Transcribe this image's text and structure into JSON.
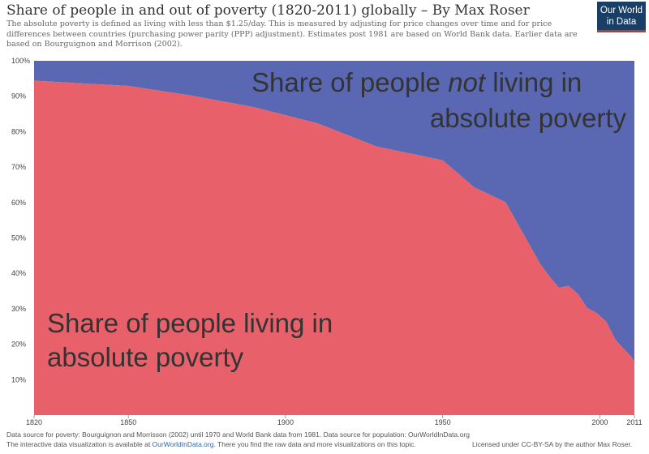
{
  "header": {
    "title": "Share of people in and out of poverty (1820-2011) globally – By Max Roser",
    "subtitle": "The absolute poverty is defined as living with less than $1.25/day. This is measured by adjusting for price changes over time and for price differences between countries (purchasing power parity (PPP) adjustment). Estimates post 1981 are based on World Bank data. Earlier data are based on Bourguignon and Morrison (2002)."
  },
  "logo": {
    "line1": "Our World",
    "line2": "in Data"
  },
  "annotations": {
    "not_poor_line1": "Share of people ",
    "not_poor_not": "not",
    "not_poor_line1_end": " living in",
    "not_poor_line2": "absolute poverty",
    "poor_line1": "Share of people living in",
    "poor_line2": "absolute poverty"
  },
  "colors": {
    "poverty": "#e8606a",
    "not_poverty": "#5a68b3"
  },
  "footer": {
    "line1": "Data source for poverty: Bourguignon and Morrisson (2002) until 1970 and World Bank data from 1981. Data source for population: OurWorldInData.org",
    "line2_pre": "The interactive data visualization is available at ",
    "line2_link": "OurWorldInData.org",
    "line2_post": ". There you find the raw data and more visualizations on this topic.",
    "license": "Licensed under CC-BY-SA by the author Max Roser."
  },
  "chart_data": {
    "type": "area",
    "stacked": true,
    "xlim": [
      1820,
      2011
    ],
    "ylim": [
      0,
      100
    ],
    "y_ticks": [
      "10%",
      "20%",
      "30%",
      "40%",
      "50%",
      "60%",
      "70%",
      "80%",
      "90%",
      "100%"
    ],
    "x_ticks": [
      "1820",
      "1850",
      "1900",
      "1950",
      "2000",
      "2011"
    ],
    "x_tick_values": [
      1820,
      1850,
      1900,
      1950,
      2000,
      2011
    ],
    "x": [
      1820,
      1850,
      1870,
      1890,
      1910,
      1929,
      1950,
      1960,
      1970,
      1981,
      1984,
      1987,
      1990,
      1993,
      1996,
      1999,
      2002,
      2005,
      2008,
      2010,
      2011
    ],
    "series": [
      {
        "name": "Share of people living in absolute poverty",
        "color": "#e8606a",
        "values": [
          94.4,
          92.9,
          90.2,
          86.9,
          82.4,
          75.8,
          71.9,
          64.3,
          60.1,
          42.7,
          39.1,
          35.9,
          36.5,
          34.2,
          30.2,
          28.8,
          26.4,
          21.2,
          18.3,
          16.5,
          15.0
        ]
      },
      {
        "name": "Share of people not living in absolute poverty",
        "color": "#5a68b3",
        "values": [
          5.6,
          7.1,
          9.8,
          13.1,
          17.6,
          24.2,
          28.1,
          35.7,
          39.9,
          57.3,
          60.9,
          64.1,
          63.5,
          65.8,
          69.8,
          71.2,
          73.6,
          78.8,
          81.7,
          83.5,
          85.0
        ]
      }
    ]
  }
}
